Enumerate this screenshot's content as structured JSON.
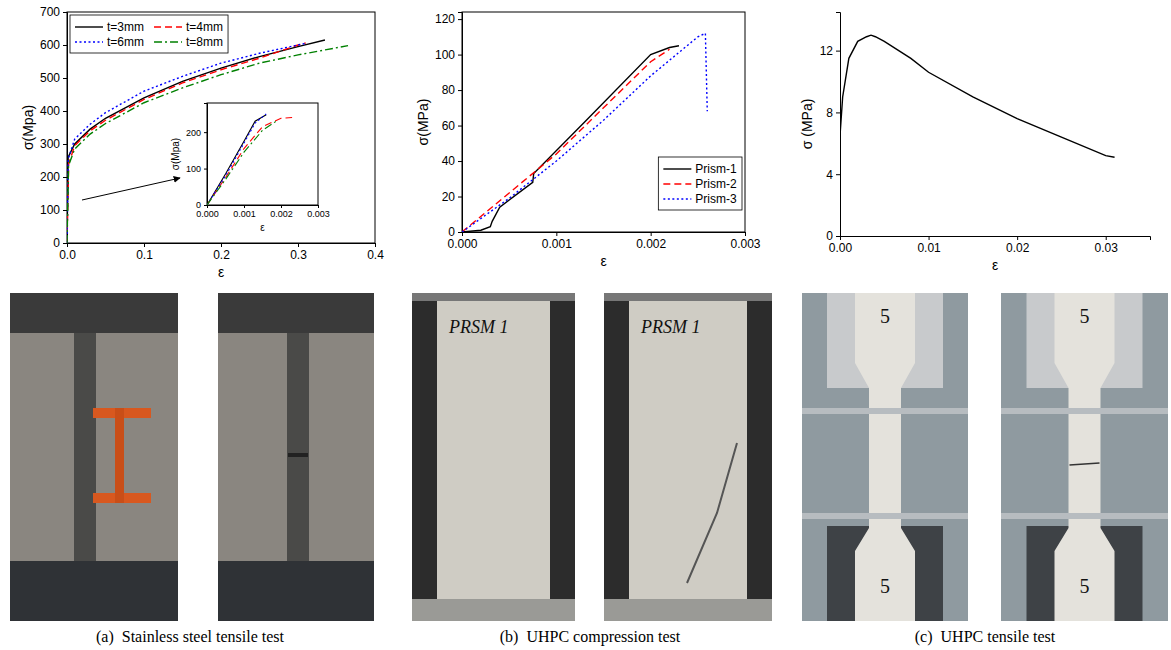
{
  "chart_data": [
    {
      "type": "line",
      "xlabel": "ε",
      "ylabel": "σ(Mpa)",
      "xlim": [
        0,
        0.4
      ],
      "xticks": [
        {
          "value": 0,
          "label": "0.0"
        },
        {
          "value": 0.1,
          "label": "0.1"
        },
        {
          "value": 0.2,
          "label": "0.2"
        },
        {
          "value": 0.3,
          "label": "0.3"
        },
        {
          "value": 0.4,
          "label": "0.4"
        }
      ],
      "ylim": [
        0,
        700
      ],
      "yticks": [
        0,
        100,
        200,
        300,
        400,
        500,
        600,
        700
      ],
      "legend": "upper left",
      "series": [
        {
          "name": "t=3mm",
          "color": "#000000",
          "line_style": "solid",
          "x": [
            0,
            0.0015,
            0.01,
            0.03,
            0.05,
            0.1,
            0.15,
            0.2,
            0.25,
            0.3,
            0.335
          ],
          "values": [
            0,
            260,
            300,
            345,
            378,
            440,
            490,
            530,
            565,
            595,
            615
          ]
        },
        {
          "name": "t=4mm",
          "color": "#ff0000",
          "line_style": "dashed",
          "x": [
            0,
            0.0022,
            0.01,
            0.03,
            0.05,
            0.1,
            0.15,
            0.2,
            0.25,
            0.3,
            0.31
          ],
          "values": [
            0,
            240,
            295,
            340,
            372,
            435,
            485,
            525,
            560,
            600,
            606
          ]
        },
        {
          "name": "t=6mm",
          "color": "#0000ff",
          "line_style": "dotted",
          "x": [
            0,
            0.0016,
            0.01,
            0.03,
            0.05,
            0.1,
            0.15,
            0.2,
            0.25,
            0.3,
            0.31
          ],
          "values": [
            0,
            255,
            315,
            360,
            395,
            460,
            505,
            545,
            575,
            600,
            605
          ]
        },
        {
          "name": "t=8mm",
          "color": "#008000",
          "line_style": "dashdot",
          "x": [
            0,
            0.002,
            0.01,
            0.03,
            0.05,
            0.1,
            0.15,
            0.2,
            0.25,
            0.3,
            0.365
          ],
          "values": [
            0,
            235,
            285,
            330,
            362,
            425,
            470,
            510,
            545,
            570,
            598
          ]
        }
      ]
    },
    {
      "type": "line",
      "xlabel": "ε",
      "ylabel": "σ(Mpa)",
      "xlim": [
        0,
        0.003
      ],
      "xticks": [
        {
          "value": 0,
          "label": "0.000"
        },
        {
          "value": 0.001,
          "label": "0.001"
        },
        {
          "value": 0.002,
          "label": "0.002"
        },
        {
          "value": 0.003,
          "label": "0.003"
        }
      ],
      "ylim": [
        0,
        280
      ],
      "yticks": [
        0,
        100,
        200
      ],
      "series": [
        {
          "color": "#000000",
          "line_style": "solid",
          "x": [
            0,
            0.0005,
            0.001,
            0.0013,
            0.0016
          ],
          "values": [
            0,
            85,
            175,
            230,
            248
          ]
        },
        {
          "color": "#ff0000",
          "line_style": "dashed",
          "x": [
            0,
            0.0005,
            0.001,
            0.0015,
            0.002,
            0.0023
          ],
          "values": [
            0,
            75,
            155,
            215,
            238,
            240
          ]
        },
        {
          "color": "#0000ff",
          "line_style": "dotted",
          "x": [
            0,
            0.0005,
            0.001,
            0.0013,
            0.0016
          ],
          "values": [
            0,
            80,
            170,
            225,
            250
          ]
        },
        {
          "color": "#008000",
          "line_style": "dashdot",
          "x": [
            0,
            0.0005,
            0.001,
            0.0015,
            0.0019
          ],
          "values": [
            0,
            70,
            145,
            205,
            232
          ]
        }
      ]
    },
    {
      "type": "line",
      "xlabel": "ε",
      "ylabel": "σ(MPa)",
      "xlim": [
        0,
        0.003
      ],
      "xticks": [
        {
          "value": 0,
          "label": "0.000"
        },
        {
          "value": 0.001,
          "label": "0.001"
        },
        {
          "value": 0.002,
          "label": "0.002"
        },
        {
          "value": 0.003,
          "label": "0.003"
        }
      ],
      "ylim": [
        0,
        124
      ],
      "yticks": [
        0,
        20,
        40,
        60,
        80,
        100,
        120
      ],
      "legend": "lower right",
      "series": [
        {
          "name": "Prism-1",
          "color": "#000000",
          "line_style": "solid",
          "x": [
            0,
            0.0002,
            0.0003,
            0.00032,
            0.0004,
            0.00075,
            0.00076,
            0.0013,
            0.002,
            0.0022,
            0.0023
          ],
          "values": [
            0,
            1,
            3,
            6,
            14,
            28,
            33,
            62,
            100,
            104,
            105
          ]
        },
        {
          "name": "Prism-2",
          "color": "#ff0000",
          "line_style": "dashed",
          "x": [
            0,
            0.0005,
            0.001,
            0.0015,
            0.002,
            0.0022
          ],
          "values": [
            0,
            22,
            44,
            70,
            96,
            103
          ]
        },
        {
          "name": "Prism-3",
          "color": "#0000ff",
          "line_style": "dotted",
          "x": [
            0,
            0.0005,
            0.001,
            0.0015,
            0.002,
            0.0025,
            0.00258,
            0.0026
          ],
          "values": [
            0,
            19,
            40,
            63,
            88,
            110,
            112,
            68
          ]
        }
      ]
    },
    {
      "type": "line",
      "xlabel": "ε",
      "ylabel": "σ (MPa)",
      "xlim": [
        0,
        0.035
      ],
      "xticks": [
        {
          "value": 0,
          "label": "0.00"
        },
        {
          "value": 0.01,
          "label": "0.01"
        },
        {
          "value": 0.02,
          "label": "0.02"
        },
        {
          "value": 0.03,
          "label": "0.03"
        }
      ],
      "ylim": [
        0,
        14.5
      ],
      "yticks": [
        0,
        4,
        8,
        12
      ],
      "series": [
        {
          "color": "#000000",
          "line_style": "solid",
          "x": [
            0,
            0.0003,
            0.001,
            0.002,
            0.003,
            0.0035,
            0.004,
            0.005,
            0.008,
            0.01,
            0.015,
            0.02,
            0.025,
            0.03,
            0.031
          ],
          "values": [
            6.5,
            9,
            11.5,
            12.6,
            12.9,
            13.0,
            12.9,
            12.6,
            11.5,
            10.6,
            9,
            7.6,
            6.4,
            5.2,
            5.1
          ]
        }
      ]
    }
  ],
  "captions": [
    "(a)  Stainless steel tensile test",
    "(b)  UHPC compression test",
    "(c)  UHPC tensile test"
  ],
  "photo_labels": {
    "prism": "PRSM 1",
    "specimen": "5"
  }
}
